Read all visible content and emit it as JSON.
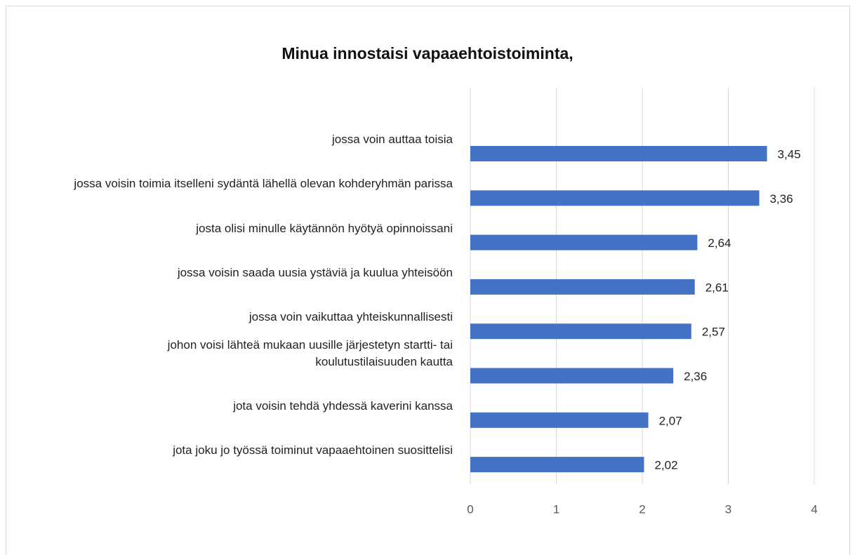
{
  "chart_data": {
    "type": "bar",
    "orientation": "horizontal",
    "title": "Minua innostaisi vapaaehtoistoiminta,",
    "categories": [
      "jossa voin auttaa toisia",
      "jossa voisin toimia itselleni sydäntä lähellä olevan kohderyhmän parissa",
      "josta olisi minulle käytännön hyötyä opinnoissani",
      "jossa voisin saada uusia ystäviä ja kuulua yhteisöön",
      "jossa voin vaikuttaa yhteiskunnallisesti",
      "johon voisi lähteä mukaan uusille järjestetyn startti- tai koulutustilaisuuden kautta",
      "jota voisin tehdä yhdessä kaverini kanssa",
      "jota joku jo työssä toiminut vapaaehtoinen suosittelisi"
    ],
    "values": [
      3.45,
      3.36,
      2.64,
      2.61,
      2.57,
      2.36,
      2.07,
      2.02
    ],
    "value_labels": [
      "3,45",
      "3,36",
      "2,64",
      "2,61",
      "2,57",
      "2,36",
      "2,07",
      "2,02"
    ],
    "color": "#4472c4",
    "xlim": [
      0,
      4
    ],
    "xticks": [
      0,
      1,
      2,
      3,
      4
    ],
    "grid": true
  }
}
